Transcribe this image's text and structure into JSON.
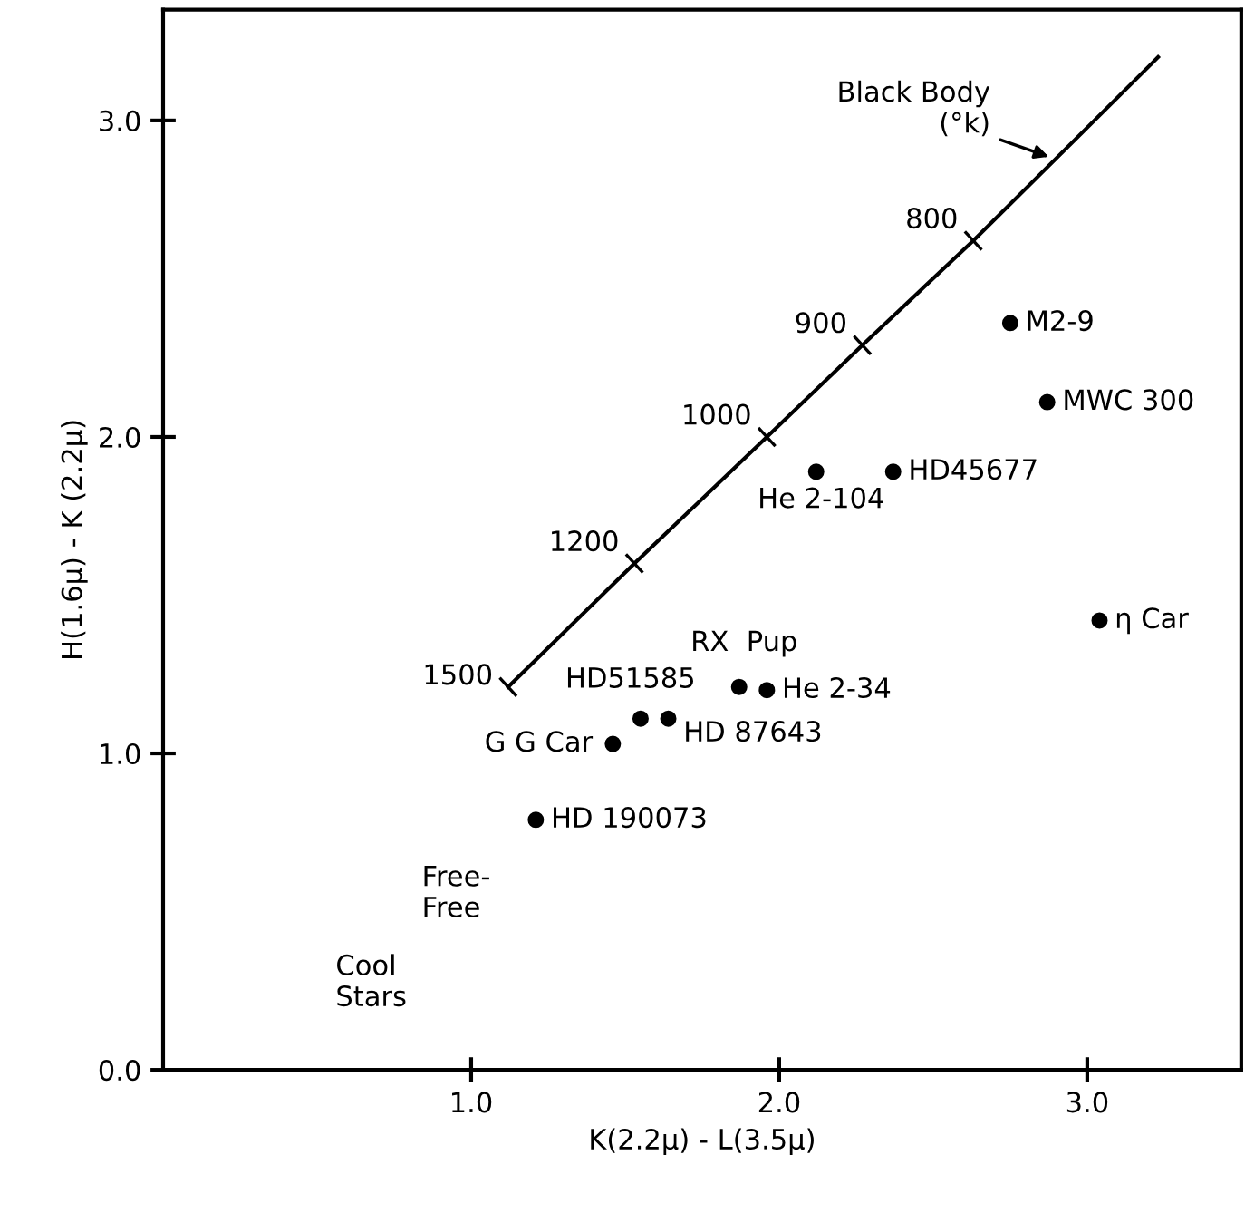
{
  "chart_data": {
    "type": "scatter",
    "xlabel": "K(2.2μ) - L(3.5μ)",
    "ylabel": "H(1.6μ) - K (2.2μ)",
    "xlim": [
      0,
      3.5
    ],
    "ylim": [
      0,
      3.35
    ],
    "xticks": [
      {
        "value": 1.0,
        "label": "1.0"
      },
      {
        "value": 2.0,
        "label": "2.0"
      },
      {
        "value": 3.0,
        "label": "3.0"
      }
    ],
    "yticks": [
      {
        "value": 0.0,
        "label": "0.0"
      },
      {
        "value": 1.0,
        "label": "1.0"
      },
      {
        "value": 2.0,
        "label": "2.0"
      },
      {
        "value": 3.0,
        "label": "3.0"
      }
    ],
    "grid": false,
    "legend": false,
    "series": [
      {
        "type": "line",
        "color": "#000000",
        "marker": "cross",
        "x": [
          1.12,
          1.53,
          1.96,
          2.27,
          2.63,
          3.23
        ],
        "values": [
          1.21,
          1.6,
          2.0,
          2.29,
          2.62,
          3.2
        ]
      },
      {
        "color": "#000000",
        "marker": "circle",
        "x": [
          2.75,
          2.87,
          2.12,
          2.37,
          3.04,
          1.87,
          1.96,
          1.55,
          1.64,
          1.46,
          1.21
        ],
        "values": [
          2.36,
          2.11,
          1.89,
          1.89,
          1.42,
          1.21,
          1.2,
          1.11,
          1.11,
          1.03,
          0.79
        ]
      }
    ],
    "annotations": [
      {
        "text": "M2-9",
        "x": 2.75,
        "y": 2.36
      },
      {
        "text": "MWC 300",
        "x": 2.87,
        "y": 2.11
      },
      {
        "text": "He 2-104",
        "x": 2.12,
        "y": 1.89
      },
      {
        "text": "HD45677",
        "x": 2.37,
        "y": 1.89
      },
      {
        "text": "η Car",
        "x": 3.04,
        "y": 1.42
      },
      {
        "text": "RX  Pup",
        "x": 1.87,
        "y": 1.21
      },
      {
        "text": "He 2-34",
        "x": 1.96,
        "y": 1.2
      },
      {
        "text": "HD51585",
        "x": 1.55,
        "y": 1.11
      },
      {
        "text": "HD 87643",
        "x": 1.64,
        "y": 1.11
      },
      {
        "text": "G G Car",
        "x": 1.46,
        "y": 1.03
      },
      {
        "text": "HD 190073",
        "x": 1.21,
        "y": 0.79
      },
      {
        "text": "1500",
        "x": 1.12,
        "y": 1.21
      },
      {
        "text": "1200",
        "x": 1.53,
        "y": 1.6
      },
      {
        "text": "1000",
        "x": 1.96,
        "y": 2.0
      },
      {
        "text": "900",
        "x": 2.27,
        "y": 2.29
      },
      {
        "text": "800",
        "x": 2.63,
        "y": 2.62
      },
      {
        "text": "Black Body\n(°k)",
        "x": 2.89,
        "y": 2.88
      },
      "Free-\nFree",
      "Cool\nStars"
    ]
  }
}
